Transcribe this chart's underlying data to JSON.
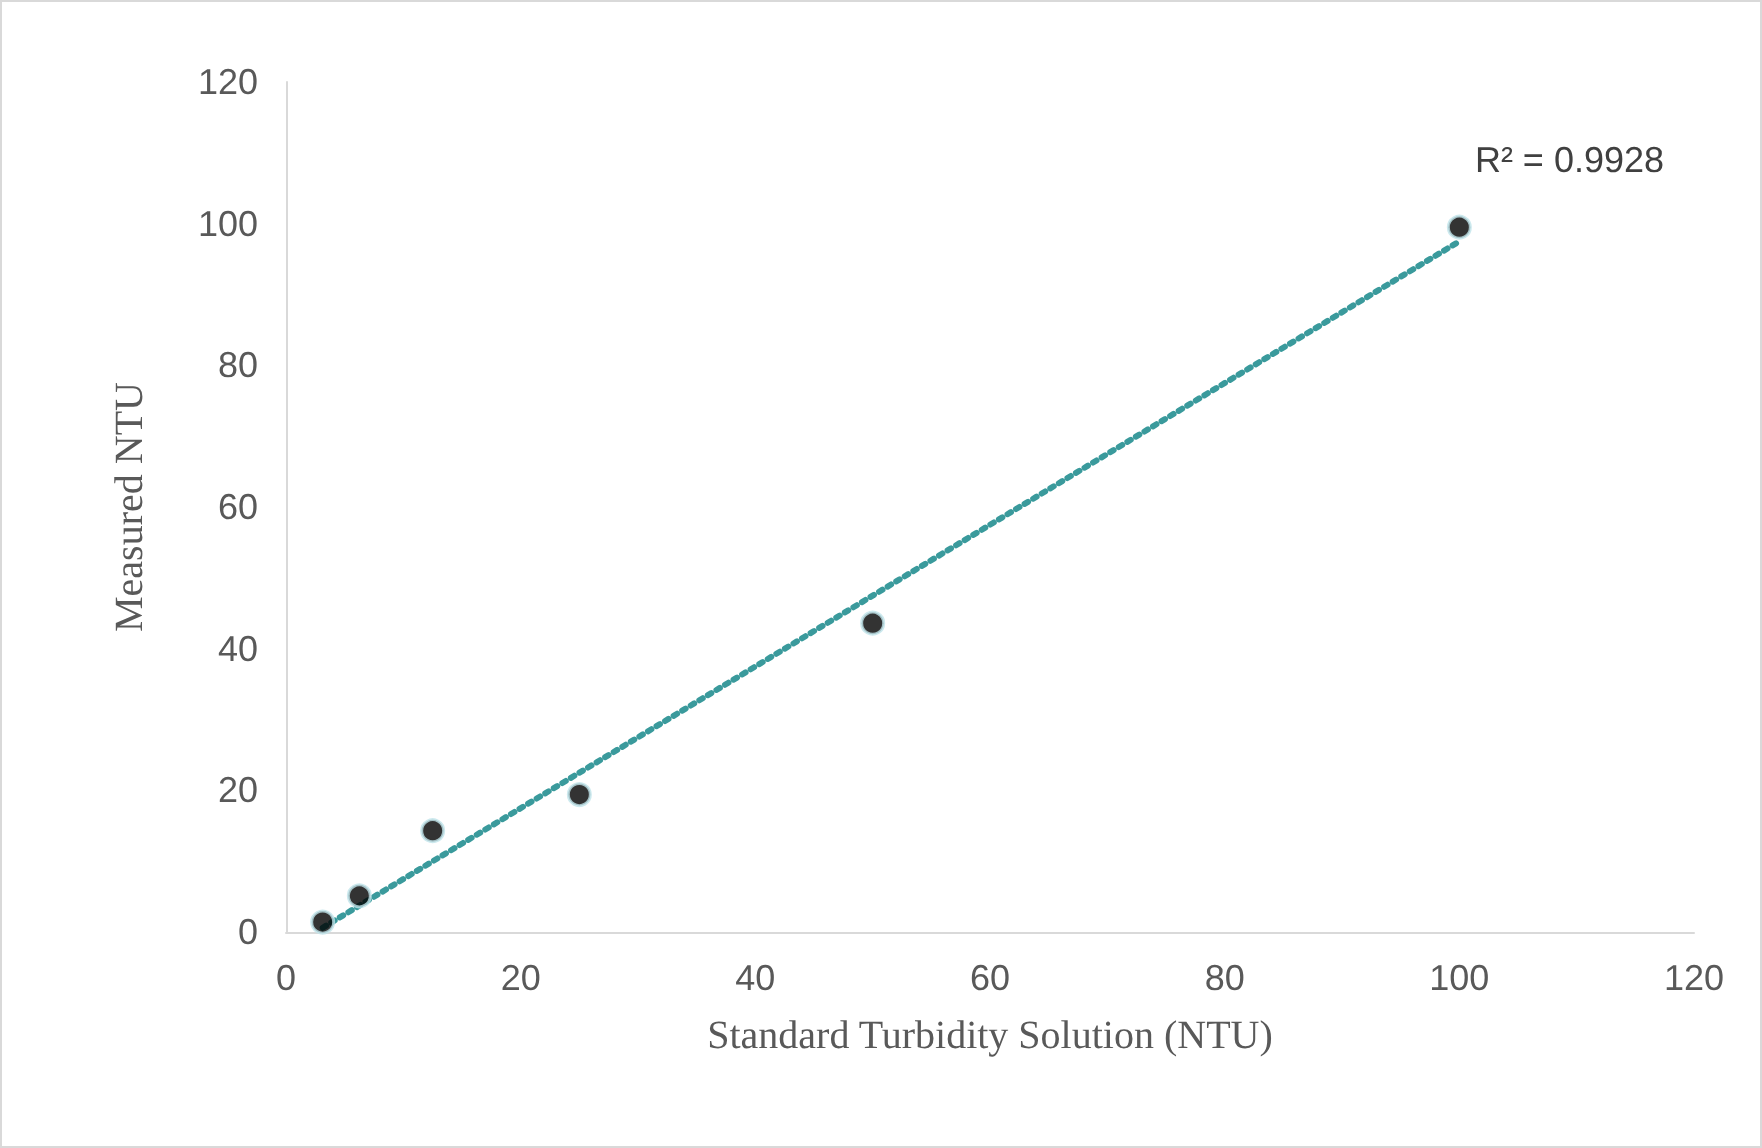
{
  "chart_data": {
    "type": "scatter",
    "xlabel": "Standard Turbidity Solution (NTU)",
    "ylabel": "Measured NTU",
    "annotations": [
      "R² = 0.9928"
    ],
    "xlim": [
      0,
      120
    ],
    "xticks": [
      0,
      20,
      40,
      60,
      80,
      100,
      120
    ],
    "ylim": [
      0,
      120
    ],
    "yticks": [
      0,
      20,
      40,
      60,
      80,
      100,
      120
    ],
    "grid": false,
    "marker": "circle",
    "series": [
      {
        "color": "#000000",
        "x": [
          3.125,
          6.25,
          12.5,
          25,
          50,
          100
        ],
        "values": [
          1.4,
          5.1,
          14.3,
          19.4,
          43.6,
          99.5
        ]
      },
      {
        "type": "line",
        "color": "#3a9a9c",
        "line_style": "dotted",
        "marker": "none",
        "x": [
          3.125,
          100
        ],
        "values": [
          0.6,
          97.5
        ]
      }
    ]
  }
}
